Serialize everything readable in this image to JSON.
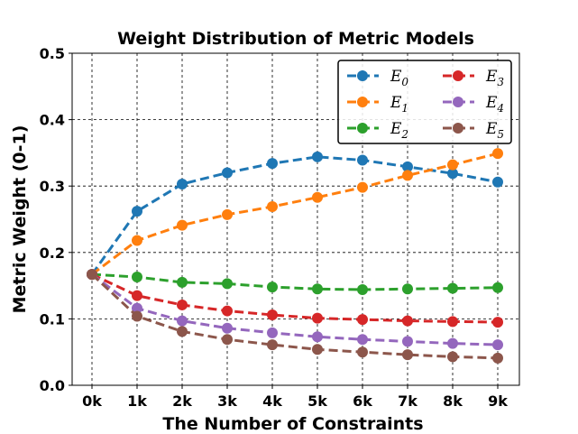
{
  "chart_data": {
    "type": "line",
    "title": "Weight Distribution of Metric Models",
    "xlabel": "The Number of Constraints",
    "ylabel": "Metric Weight (0-1)",
    "categories": [
      "0k",
      "1k",
      "2k",
      "3k",
      "4k",
      "5k",
      "6k",
      "7k",
      "8k",
      "9k"
    ],
    "ylim": [
      0.0,
      0.5
    ],
    "yticks": [
      "0.0",
      "0.1",
      "0.2",
      "0.3",
      "0.4",
      "0.5"
    ],
    "grid": true,
    "legend_position": "top-right",
    "series": [
      {
        "name": "E",
        "subscript": "0",
        "color": "#1f77b4",
        "values": [
          0.167,
          0.262,
          0.303,
          0.32,
          0.334,
          0.344,
          0.339,
          0.329,
          0.319,
          0.306
        ]
      },
      {
        "name": "E",
        "subscript": "1",
        "color": "#ff7f0e",
        "values": [
          0.167,
          0.218,
          0.241,
          0.257,
          0.269,
          0.283,
          0.298,
          0.316,
          0.332,
          0.349
        ]
      },
      {
        "name": "E",
        "subscript": "2",
        "color": "#2ca02c",
        "values": [
          0.167,
          0.163,
          0.155,
          0.153,
          0.148,
          0.145,
          0.144,
          0.145,
          0.146,
          0.147
        ]
      },
      {
        "name": "E",
        "subscript": "3",
        "color": "#d62728",
        "values": [
          0.167,
          0.135,
          0.121,
          0.112,
          0.106,
          0.101,
          0.099,
          0.097,
          0.096,
          0.095
        ]
      },
      {
        "name": "E",
        "subscript": "4",
        "color": "#9467bd",
        "values": [
          0.167,
          0.116,
          0.097,
          0.086,
          0.079,
          0.073,
          0.069,
          0.066,
          0.063,
          0.061
        ]
      },
      {
        "name": "E",
        "subscript": "5",
        "color": "#8c564b",
        "values": [
          0.167,
          0.104,
          0.081,
          0.069,
          0.061,
          0.054,
          0.05,
          0.046,
          0.043,
          0.041
        ]
      }
    ]
  }
}
